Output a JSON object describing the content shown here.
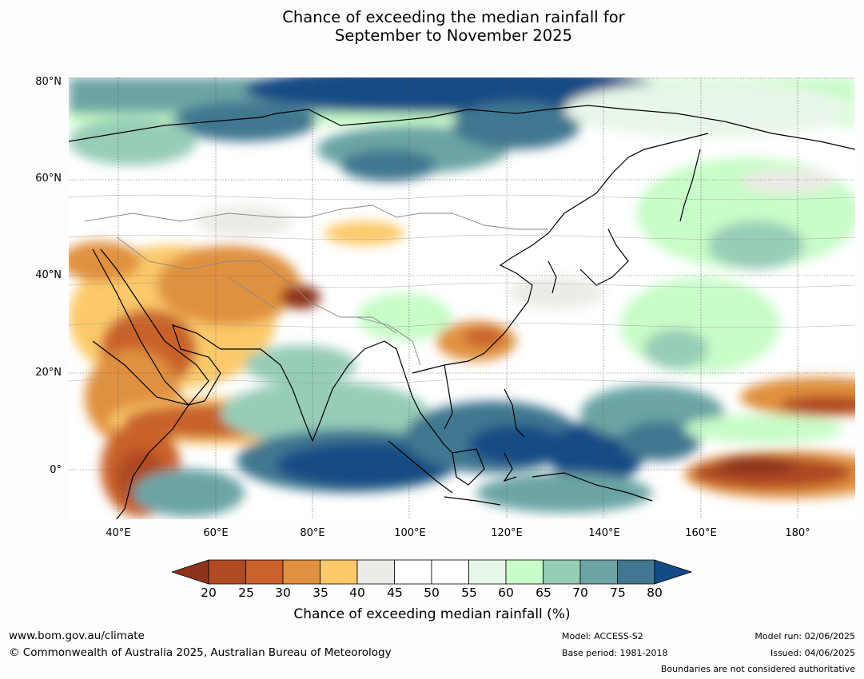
{
  "title": {
    "line1": "Chance of exceeding the median rainfall for",
    "line2": "September to November 2025"
  },
  "map": {
    "lat_labels": [
      "80°N",
      "60°N",
      "40°N",
      "20°N",
      "0°"
    ],
    "lon_labels": [
      "40°E",
      "60°E",
      "80°E",
      "100°E",
      "120°E",
      "140°E",
      "160°E",
      "180°"
    ],
    "extent": {
      "lon": [
        30,
        190
      ],
      "lat": [
        -10,
        80
      ]
    }
  },
  "colorbar": {
    "ticks": [
      "20",
      "25",
      "30",
      "35",
      "40",
      "45",
      "50",
      "55",
      "60",
      "65",
      "70",
      "75",
      "80"
    ],
    "colors": [
      "#8e321c",
      "#b04a22",
      "#c9622c",
      "#e0913f",
      "#fbc96a",
      "#ecebe6",
      "#ffffff",
      "#ffffff",
      "#e8f6e8",
      "#c8fcc8",
      "#97ccb7",
      "#6ca4a4",
      "#417790",
      "#124b85"
    ],
    "label": "Chance of exceeding median rainfall (%)"
  },
  "footer": {
    "website": "www.bom.gov.au/climate",
    "copyright": "© Commonwealth of Australia 2025, Australian Bureau of Meteorology",
    "model": "Model: ACCESS-S2",
    "base_period": "Base period: 1981-2018",
    "model_run": "Model run: 02/06/2025",
    "issued": "Issued: 04/06/2025",
    "disclaimer": "Boundaries are not considered authoritative"
  }
}
